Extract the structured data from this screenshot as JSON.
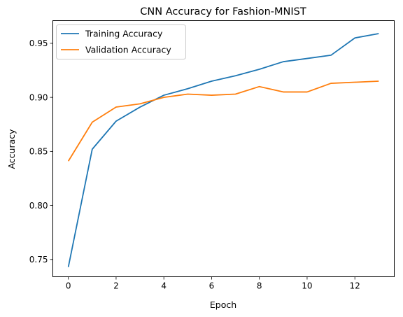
{
  "chart_data": {
    "type": "line",
    "title": "CNN Accuracy for Fashion-MNIST",
    "xlabel": "Epoch",
    "ylabel": "Accuracy",
    "xlim": [
      -0.65,
      13.65
    ],
    "ylim": [
      0.734,
      0.971
    ],
    "xticks": [
      0,
      2,
      4,
      6,
      8,
      10,
      12
    ],
    "yticks": [
      0.75,
      0.8,
      0.85,
      0.9,
      0.95
    ],
    "x": [
      0,
      1,
      2,
      3,
      4,
      5,
      6,
      7,
      8,
      9,
      10,
      11,
      12,
      13
    ],
    "series": [
      {
        "name": "Training Accuracy",
        "color": "#1f77b4",
        "values": [
          0.743,
          0.852,
          0.878,
          0.891,
          0.902,
          0.908,
          0.915,
          0.92,
          0.926,
          0.933,
          0.936,
          0.939,
          0.955,
          0.959
        ]
      },
      {
        "name": "Validation Accuracy",
        "color": "#ff7f0e",
        "values": [
          0.841,
          0.877,
          0.891,
          0.894,
          0.9,
          0.903,
          0.902,
          0.903,
          0.91,
          0.905,
          0.905,
          0.913,
          0.914,
          0.915
        ]
      }
    ],
    "grid": false,
    "legend_position": "top-left"
  }
}
